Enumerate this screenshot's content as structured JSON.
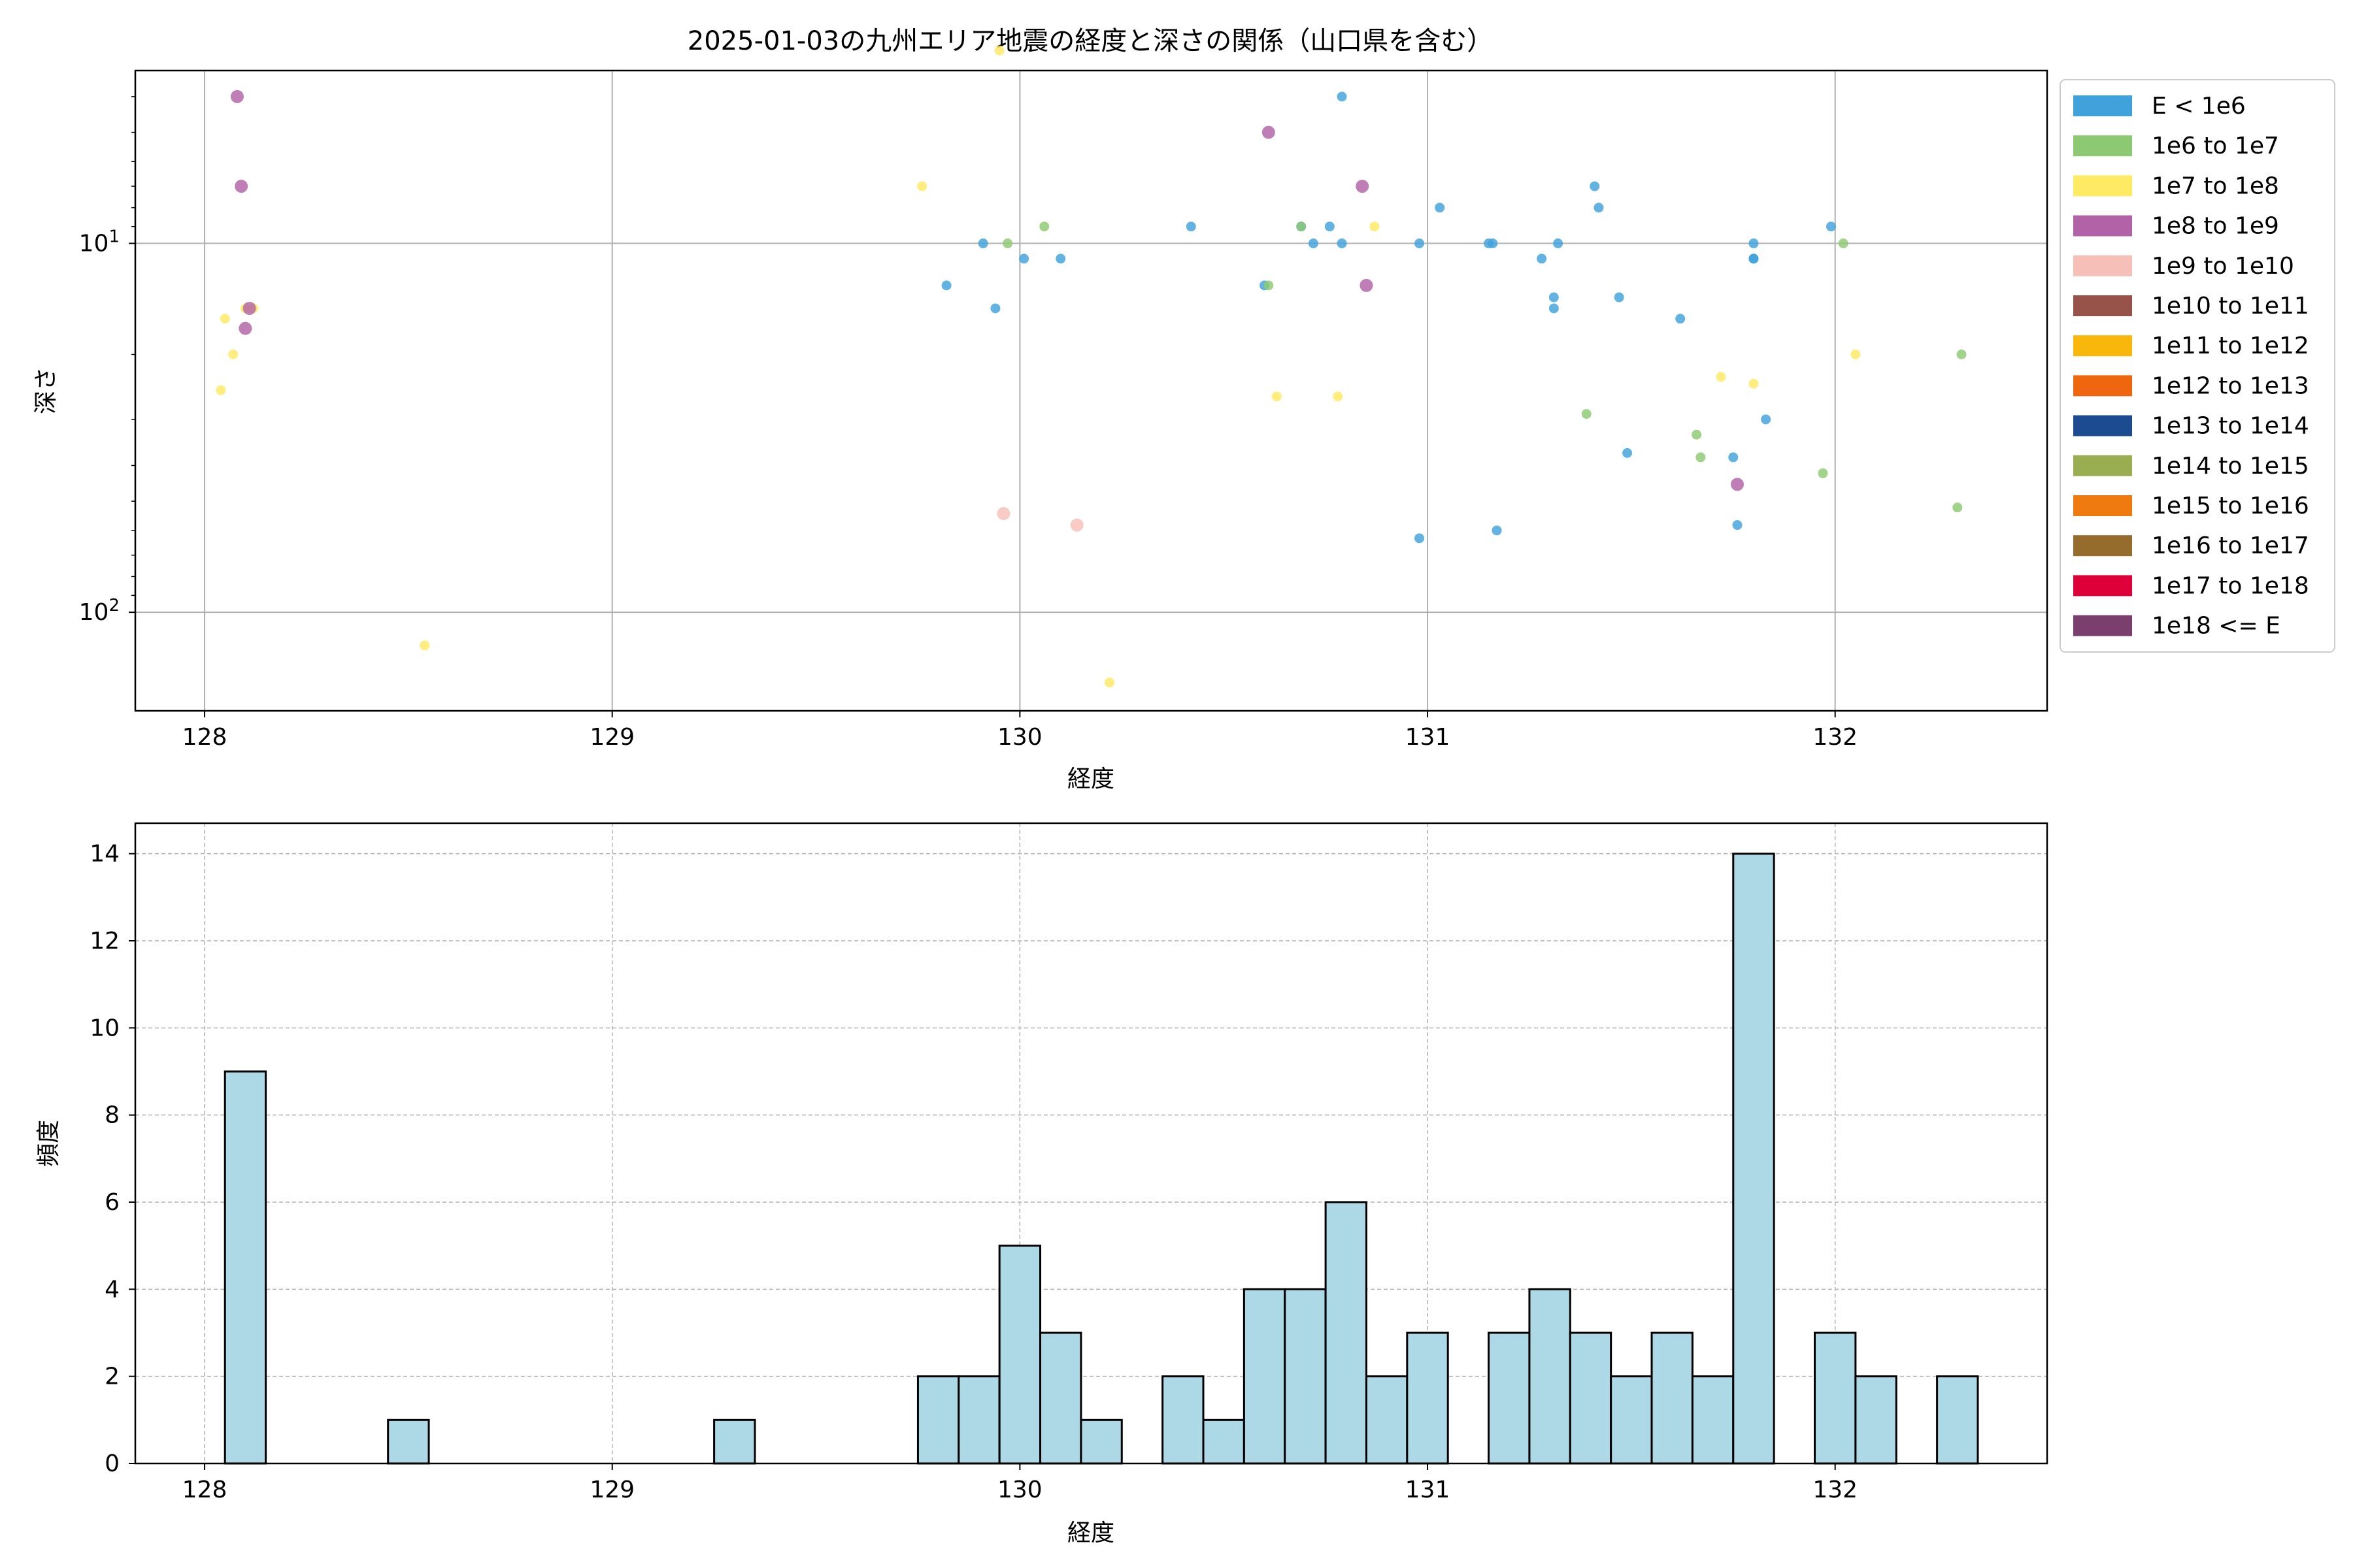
{
  "colors": {
    "hist_fill": "#add8e6",
    "grid": "#b0b0b0",
    "axis": "#000000"
  },
  "legend_entries": [
    {
      "label": "E < 1e6",
      "color": "#3fa2db"
    },
    {
      "label": "1e6 to 1e7",
      "color": "#8dc972"
    },
    {
      "label": "1e7 to 1e8",
      "color": "#ffea63"
    },
    {
      "label": "1e8 to 1e9",
      "color": "#b262a6"
    },
    {
      "label": "1e9 to 1e10",
      "color": "#f6c0b8"
    },
    {
      "label": "1e10 to 1e11",
      "color": "#975249"
    },
    {
      "label": "1e11 to 1e12",
      "color": "#f9b70b"
    },
    {
      "label": "1e12 to 1e13",
      "color": "#ee660e"
    },
    {
      "label": "1e13 to 1e14",
      "color": "#1c4b91"
    },
    {
      "label": "1e14 to 1e15",
      "color": "#9bad51"
    },
    {
      "label": "1e15 to 1e16",
      "color": "#ee7a10"
    },
    {
      "label": "1e16 to 1e17",
      "color": "#956c2c"
    },
    {
      "label": "1e17 to 1e18",
      "color": "#dd0039"
    },
    {
      "label": "1e18 <= E",
      "color": "#7b3f6d"
    }
  ],
  "chart_data": [
    {
      "type": "scatter",
      "title": "2025-01-03の九州エリア地震の経度と深さの関係（山口県を含む）",
      "xlabel": "経度",
      "ylabel": "深さ",
      "xlim": [
        127.83,
        132.52
      ],
      "ylim": [
        185,
        3.4
      ],
      "y_scale": "log",
      "y_inverted": true,
      "grid": true,
      "legend_position": "outside-right",
      "x_ticks": [
        "128",
        "129",
        "130",
        "131",
        "132"
      ],
      "y_ticks": [
        {
          "value": 10,
          "base": "10",
          "exp": "1"
        },
        {
          "value": 100,
          "base": "10",
          "exp": "2"
        }
      ],
      "series": [
        {
          "legend_index": 0,
          "points": [
            [
              129.82,
              13
            ],
            [
              129.91,
              10
            ],
            [
              129.94,
              15
            ],
            [
              130.01,
              11
            ],
            [
              130.1,
              11
            ],
            [
              130.42,
              9
            ],
            [
              130.69,
              9
            ],
            [
              130.72,
              10
            ],
            [
              130.76,
              9
            ],
            [
              130.79,
              10
            ],
            [
              130.79,
              4
            ],
            [
              130.6,
              13
            ],
            [
              130.98,
              10
            ],
            [
              131.03,
              8
            ],
            [
              131.15,
              10
            ],
            [
              131.16,
              10
            ],
            [
              131.17,
              60
            ],
            [
              130.98,
              63
            ],
            [
              131.28,
              11
            ],
            [
              131.32,
              10
            ],
            [
              131.31,
              14
            ],
            [
              131.31,
              15
            ],
            [
              131.41,
              7
            ],
            [
              131.42,
              8
            ],
            [
              131.47,
              14
            ],
            [
              131.49,
              37
            ],
            [
              131.62,
              16
            ],
            [
              131.75,
              38
            ],
            [
              131.8,
              10
            ],
            [
              131.8,
              11
            ],
            [
              131.8,
              11
            ],
            [
              131.83,
              30
            ],
            [
              131.76,
              58
            ],
            [
              131.99,
              9
            ]
          ]
        },
        {
          "legend_index": 1,
          "points": [
            [
              129.97,
              10
            ],
            [
              130.06,
              9
            ],
            [
              130.61,
              13
            ],
            [
              130.69,
              9
            ],
            [
              131.39,
              29
            ],
            [
              131.66,
              33
            ],
            [
              131.67,
              38
            ],
            [
              131.97,
              42
            ],
            [
              132.02,
              10
            ],
            [
              132.3,
              52
            ],
            [
              132.31,
              20
            ]
          ]
        },
        {
          "legend_index": 2,
          "points": [
            [
              128.04,
              25
            ],
            [
              128.05,
              16
            ],
            [
              128.07,
              20
            ],
            [
              128.1,
              15
            ],
            [
              128.12,
              15
            ],
            [
              128.54,
              123
            ],
            [
              129.76,
              7
            ],
            [
              129.95,
              3.0
            ],
            [
              130.22,
              155
            ],
            [
              130.63,
              26
            ],
            [
              130.78,
              26
            ],
            [
              130.87,
              9
            ],
            [
              131.72,
              23
            ],
            [
              131.8,
              24
            ],
            [
              132.05,
              20
            ]
          ]
        },
        {
          "legend_index": 3,
          "points": [
            [
              128.08,
              4
            ],
            [
              128.09,
              7
            ],
            [
              128.11,
              15
            ],
            [
              128.1,
              17
            ],
            [
              130.61,
              5
            ],
            [
              130.84,
              7
            ],
            [
              130.85,
              13
            ],
            [
              131.76,
              45
            ]
          ]
        },
        {
          "legend_index": 4,
          "points": [
            [
              129.96,
              54
            ],
            [
              130.14,
              58
            ]
          ]
        }
      ]
    },
    {
      "type": "bar",
      "title": "",
      "xlabel": "経度",
      "ylabel": "頻度",
      "xlim": [
        127.83,
        132.52
      ],
      "ylim": [
        0,
        14.7
      ],
      "grid": true,
      "grid_style": "dashed",
      "bin_width": 0.1,
      "x_ticks": [
        "128",
        "129",
        "130",
        "131",
        "132"
      ],
      "y_ticks": [
        "0",
        "2",
        "4",
        "6",
        "8",
        "10",
        "12",
        "14"
      ],
      "bins": [
        {
          "start": 128.05,
          "count": 9
        },
        {
          "start": 128.45,
          "count": 1
        },
        {
          "start": 129.25,
          "count": 1
        },
        {
          "start": 129.75,
          "count": 2
        },
        {
          "start": 129.85,
          "count": 2
        },
        {
          "start": 129.95,
          "count": 5
        },
        {
          "start": 130.05,
          "count": 3
        },
        {
          "start": 130.15,
          "count": 1
        },
        {
          "start": 130.35,
          "count": 2
        },
        {
          "start": 130.45,
          "count": 1
        },
        {
          "start": 130.55,
          "count": 4
        },
        {
          "start": 130.65,
          "count": 4
        },
        {
          "start": 130.75,
          "count": 6
        },
        {
          "start": 130.85,
          "count": 2
        },
        {
          "start": 130.95,
          "count": 3
        },
        {
          "start": 131.15,
          "count": 3
        },
        {
          "start": 131.25,
          "count": 4
        },
        {
          "start": 131.35,
          "count": 3
        },
        {
          "start": 131.45,
          "count": 2
        },
        {
          "start": 131.55,
          "count": 3
        },
        {
          "start": 131.65,
          "count": 2
        },
        {
          "start": 131.75,
          "count": 14
        },
        {
          "start": 131.95,
          "count": 3
        },
        {
          "start": 132.05,
          "count": 2
        },
        {
          "start": 132.25,
          "count": 2
        }
      ]
    }
  ]
}
